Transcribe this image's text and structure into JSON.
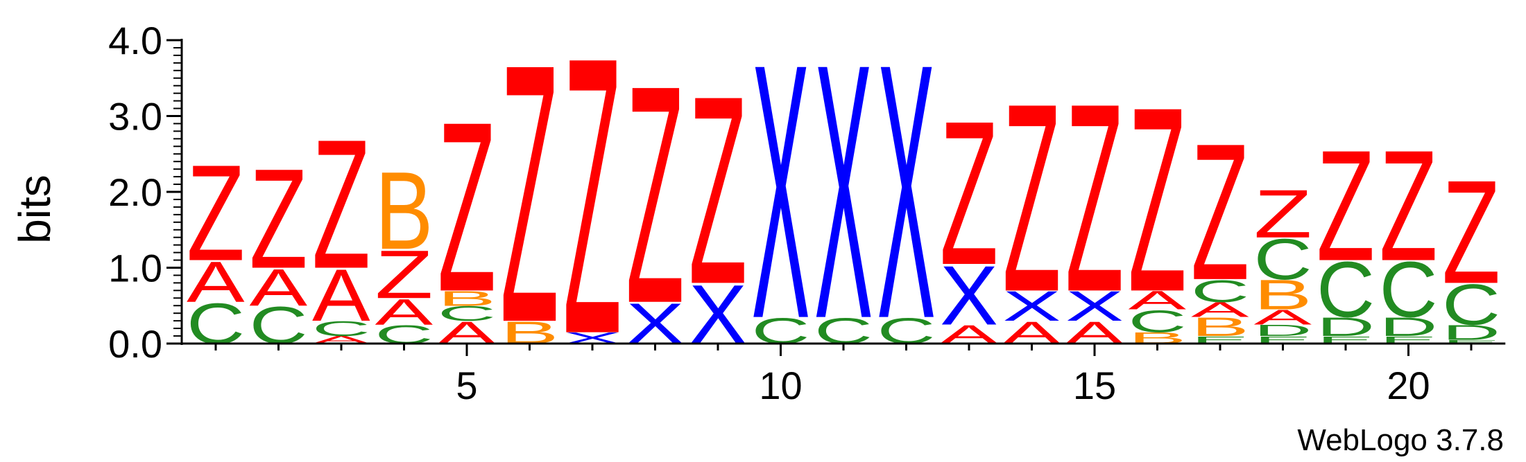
{
  "chart_data": {
    "type": "sequence-logo",
    "ylabel": "bits",
    "ylim": [
      0,
      4.0
    ],
    "y_ticks": [
      "0.0",
      "1.0",
      "2.0",
      "3.0",
      "4.0"
    ],
    "x_ticks": [
      5,
      10,
      15,
      20
    ],
    "num_positions": 21,
    "colors": {
      "Z": "#ff0000",
      "A": "#ff0000",
      "X": "#0000ff",
      "C": "#228b22",
      "D": "#228b22",
      "E": "#228b22",
      "B": "#ff8c00"
    },
    "positions": [
      {
        "pos": 1,
        "stack": [
          [
            "C",
            0.55
          ],
          [
            "A",
            0.55
          ],
          [
            "Z",
            1.3
          ]
        ]
      },
      {
        "pos": 2,
        "stack": [
          [
            "C",
            0.5
          ],
          [
            "A",
            0.5
          ],
          [
            "Z",
            1.35
          ]
        ]
      },
      {
        "pos": 3,
        "stack": [
          [
            "A",
            0.1
          ],
          [
            "C",
            0.2
          ],
          [
            "A",
            0.7
          ],
          [
            "Z",
            1.75
          ]
        ]
      },
      {
        "pos": 4,
        "stack": [
          [
            "C",
            0.25
          ],
          [
            "A",
            0.35
          ],
          [
            "Z",
            0.65
          ],
          [
            "B",
            1.05
          ]
        ]
      },
      {
        "pos": 5,
        "stack": [
          [
            "A",
            0.3
          ],
          [
            "C",
            0.2
          ],
          [
            "B",
            0.2
          ],
          [
            "Z",
            2.3
          ]
        ]
      },
      {
        "pos": 6,
        "stack": [
          [
            "B",
            0.3
          ],
          [
            "Z",
            3.5
          ]
        ]
      },
      {
        "pos": 7,
        "stack": [
          [
            "X",
            0.15
          ],
          [
            "Z",
            3.75
          ]
        ]
      },
      {
        "pos": 8,
        "stack": [
          [
            "X",
            0.55
          ],
          [
            "Z",
            2.95
          ]
        ]
      },
      {
        "pos": 9,
        "stack": [
          [
            "X",
            0.8
          ],
          [
            "Z",
            2.55
          ]
        ]
      },
      {
        "pos": 10,
        "stack": [
          [
            "C",
            0.35
          ],
          [
            "X",
            3.45
          ]
        ]
      },
      {
        "pos": 11,
        "stack": [
          [
            "C",
            0.35
          ],
          [
            "X",
            3.45
          ]
        ]
      },
      {
        "pos": 12,
        "stack": [
          [
            "C",
            0.35
          ],
          [
            "X",
            3.45
          ]
        ]
      },
      {
        "pos": 13,
        "stack": [
          [
            "A",
            0.25
          ],
          [
            "X",
            0.8
          ],
          [
            "Z",
            1.95
          ]
        ]
      },
      {
        "pos": 14,
        "stack": [
          [
            "A",
            0.3
          ],
          [
            "X",
            0.4
          ],
          [
            "Z",
            2.55
          ]
        ]
      },
      {
        "pos": 15,
        "stack": [
          [
            "A",
            0.3
          ],
          [
            "X",
            0.4
          ],
          [
            "Z",
            2.55
          ]
        ]
      },
      {
        "pos": 16,
        "stack": [
          [
            "B",
            0.15
          ],
          [
            "C",
            0.3
          ],
          [
            "A",
            0.25
          ],
          [
            "Z",
            2.5
          ]
        ]
      },
      {
        "pos": 17,
        "stack": [
          [
            "E",
            0.1
          ],
          [
            "B",
            0.25
          ],
          [
            "A",
            0.2
          ],
          [
            "C",
            0.3
          ],
          [
            "Z",
            1.85
          ]
        ]
      },
      {
        "pos": 18,
        "stack": [
          [
            "E",
            0.1
          ],
          [
            "D",
            0.15
          ],
          [
            "A",
            0.2
          ],
          [
            "B",
            0.4
          ],
          [
            "C",
            0.55
          ],
          [
            "Z",
            0.65
          ]
        ]
      },
      {
        "pos": 19,
        "stack": [
          [
            "E",
            0.1
          ],
          [
            "D",
            0.25
          ],
          [
            "C",
            0.75
          ],
          [
            "Z",
            1.5
          ]
        ]
      },
      {
        "pos": 20,
        "stack": [
          [
            "E",
            0.1
          ],
          [
            "D",
            0.25
          ],
          [
            "C",
            0.75
          ],
          [
            "Z",
            1.5
          ]
        ]
      },
      {
        "pos": 21,
        "stack": [
          [
            "E",
            0.05
          ],
          [
            "D",
            0.2
          ],
          [
            "C",
            0.55
          ],
          [
            "Z",
            1.4
          ]
        ]
      }
    ],
    "footer": "WebLogo 3.7.8"
  }
}
